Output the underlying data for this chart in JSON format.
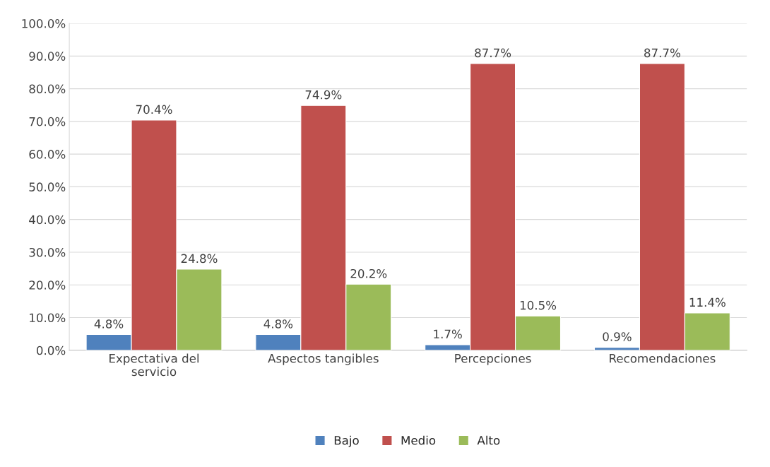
{
  "chart_data": {
    "type": "bar",
    "categories": [
      "Expectativa del\nservicio",
      "Aspectos tangibles",
      "Percepciones",
      "Recomendaciones"
    ],
    "series": [
      {
        "name": "Bajo",
        "color": "#4f81bd",
        "values": [
          4.8,
          4.8,
          1.7,
          0.9
        ],
        "value_labels": [
          "4.8%",
          "4.8%",
          "1.7%",
          "0.9%"
        ]
      },
      {
        "name": "Medio",
        "color": "#c0504d",
        "values": [
          70.4,
          74.9,
          87.7,
          87.7
        ],
        "value_labels": [
          "70.4%",
          "74.9%",
          "87.7%",
          "87.7%"
        ]
      },
      {
        "name": "Alto",
        "color": "#9bbb59",
        "values": [
          24.8,
          20.2,
          10.5,
          11.4
        ],
        "value_labels": [
          "24.8%",
          "20.2%",
          "10.5%",
          "11.4%"
        ]
      }
    ],
    "ylim": [
      0,
      100
    ],
    "yticks": [
      {
        "value": 0,
        "label": "0.0%"
      },
      {
        "value": 10,
        "label": "10.0%"
      },
      {
        "value": 20,
        "label": "20.0%"
      },
      {
        "value": 30,
        "label": "30.0%"
      },
      {
        "value": 40,
        "label": "40.0%"
      },
      {
        "value": 50,
        "label": "50.0%"
      },
      {
        "value": 60,
        "label": "60.0%"
      },
      {
        "value": 70,
        "label": "70.0%"
      },
      {
        "value": 80,
        "label": "80.0%"
      },
      {
        "value": 90,
        "label": "90.0%"
      },
      {
        "value": 100,
        "label": "100.0%"
      }
    ],
    "grid": "y",
    "legend": "bottom"
  }
}
